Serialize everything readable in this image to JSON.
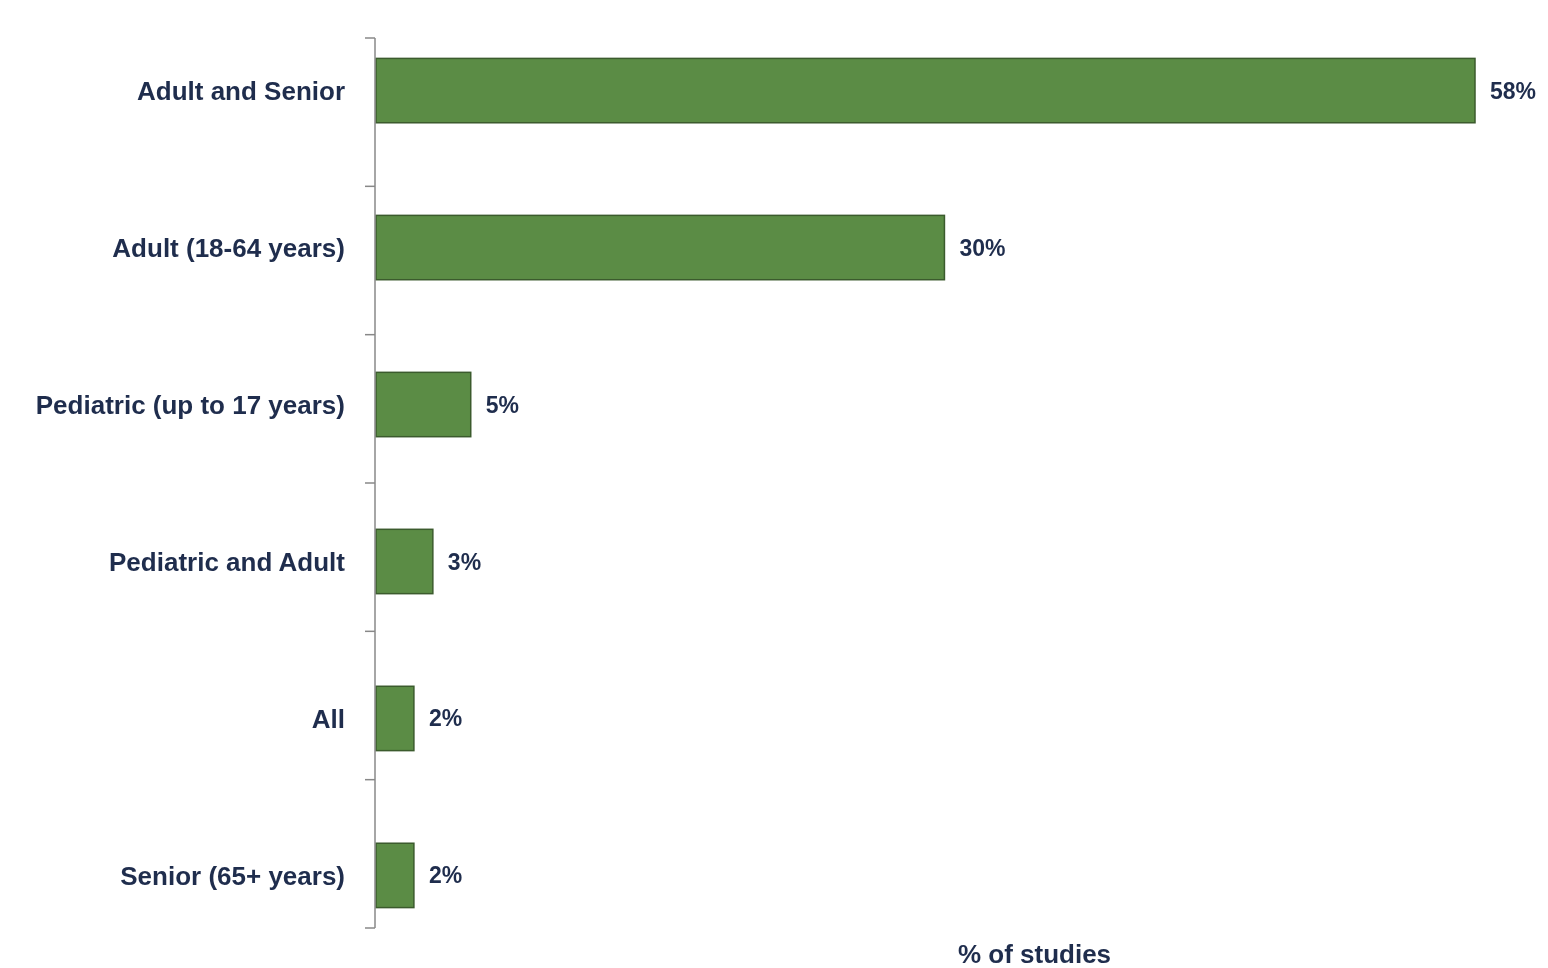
{
  "chart_data": {
    "type": "bar",
    "orientation": "horizontal",
    "xlabel": "% of studies",
    "categories": [
      "Adult and Senior",
      "Adult (18-64 years)",
      "Pediatric (up to 17 years)",
      "Pediatric and Adult",
      "All",
      "Senior (65+ years)"
    ],
    "values": [
      58,
      30,
      5,
      3,
      2,
      2
    ],
    "value_labels": [
      "58%",
      "30%",
      "5%",
      "3%",
      "2%",
      "2%"
    ],
    "color": "#5b8c45"
  }
}
